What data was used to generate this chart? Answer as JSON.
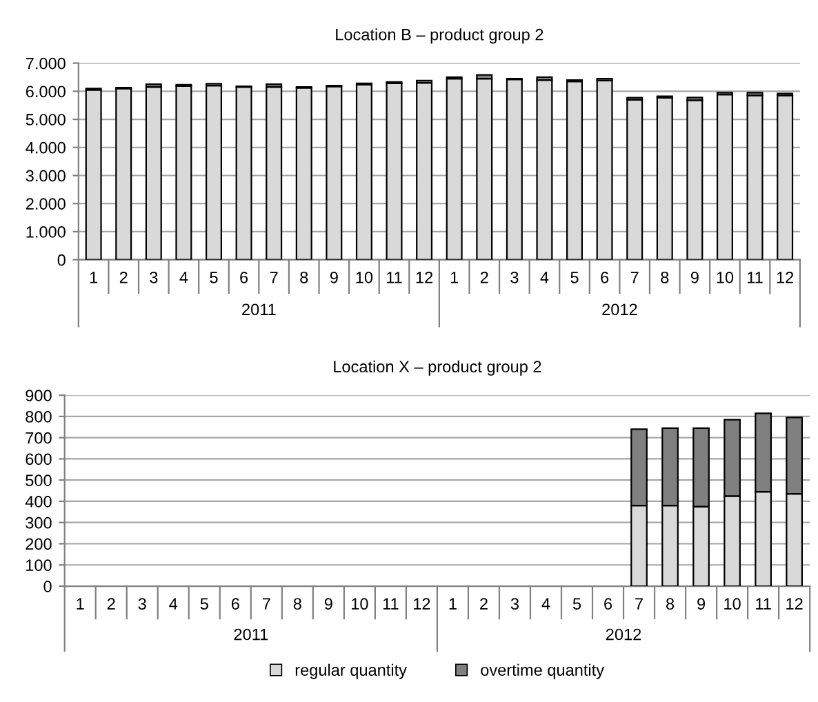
{
  "chart_data": [
    {
      "type": "bar",
      "title": "Location B – product group 2",
      "stacked": true,
      "grid": "y",
      "legend": false,
      "categories": [
        "1",
        "2",
        "3",
        "4",
        "5",
        "6",
        "7",
        "8",
        "9",
        "10",
        "11",
        "12",
        "1",
        "2",
        "3",
        "4",
        "5",
        "6",
        "7",
        "8",
        "9",
        "10",
        "11",
        "12"
      ],
      "annotations": [
        "2011",
        "2012"
      ],
      "ylim": [
        0,
        7000
      ],
      "yticks": [
        0,
        {
          "value": 1000,
          "label": "1.000"
        },
        {
          "value": 2000,
          "label": "2.000"
        },
        {
          "value": 3000,
          "label": "3.000"
        },
        {
          "value": 4000,
          "label": "4.000"
        },
        {
          "value": 5000,
          "label": "5.000"
        },
        {
          "value": 6000,
          "label": "6.000"
        },
        {
          "value": 7000,
          "label": "7.000"
        }
      ],
      "series": [
        {
          "color": "#d9d9d9",
          "values": [
            6050,
            6100,
            6150,
            6180,
            6200,
            6150,
            6150,
            6120,
            6170,
            6230,
            6280,
            6300,
            6450,
            6450,
            6420,
            6400,
            6350,
            6380,
            5700,
            5770,
            5680,
            5880,
            5850,
            5850
          ]
        },
        {
          "color": "#808080",
          "values": [
            50,
            30,
            100,
            50,
            70,
            30,
            100,
            30,
            30,
            50,
            50,
            80,
            50,
            130,
            30,
            100,
            50,
            70,
            70,
            50,
            100,
            70,
            100,
            70
          ]
        }
      ]
    },
    {
      "type": "bar",
      "title": "Location X – product group 2",
      "stacked": true,
      "grid": "y",
      "legend": "bottom",
      "categories": [
        "1",
        "2",
        "3",
        "4",
        "5",
        "6",
        "7",
        "8",
        "9",
        "10",
        "11",
        "12",
        "1",
        "2",
        "3",
        "4",
        "5",
        "6",
        "7",
        "8",
        "9",
        "10",
        "11",
        "12"
      ],
      "annotations": [
        "2011",
        "2012"
      ],
      "ylim": [
        0,
        900
      ],
      "yticks": [
        0,
        100,
        200,
        300,
        400,
        500,
        600,
        700,
        800,
        900
      ],
      "series": [
        {
          "name": "regular quantity",
          "color": "#d9d9d9",
          "values": [
            null,
            null,
            null,
            null,
            null,
            null,
            null,
            null,
            null,
            null,
            null,
            null,
            null,
            null,
            null,
            null,
            null,
            null,
            380,
            380,
            375,
            425,
            445,
            435
          ]
        },
        {
          "name": "overtime quantity",
          "color": "#808080",
          "values": [
            null,
            null,
            null,
            null,
            null,
            null,
            null,
            null,
            null,
            null,
            null,
            null,
            null,
            null,
            null,
            null,
            null,
            null,
            360,
            365,
            370,
            360,
            370,
            360
          ]
        }
      ]
    }
  ]
}
